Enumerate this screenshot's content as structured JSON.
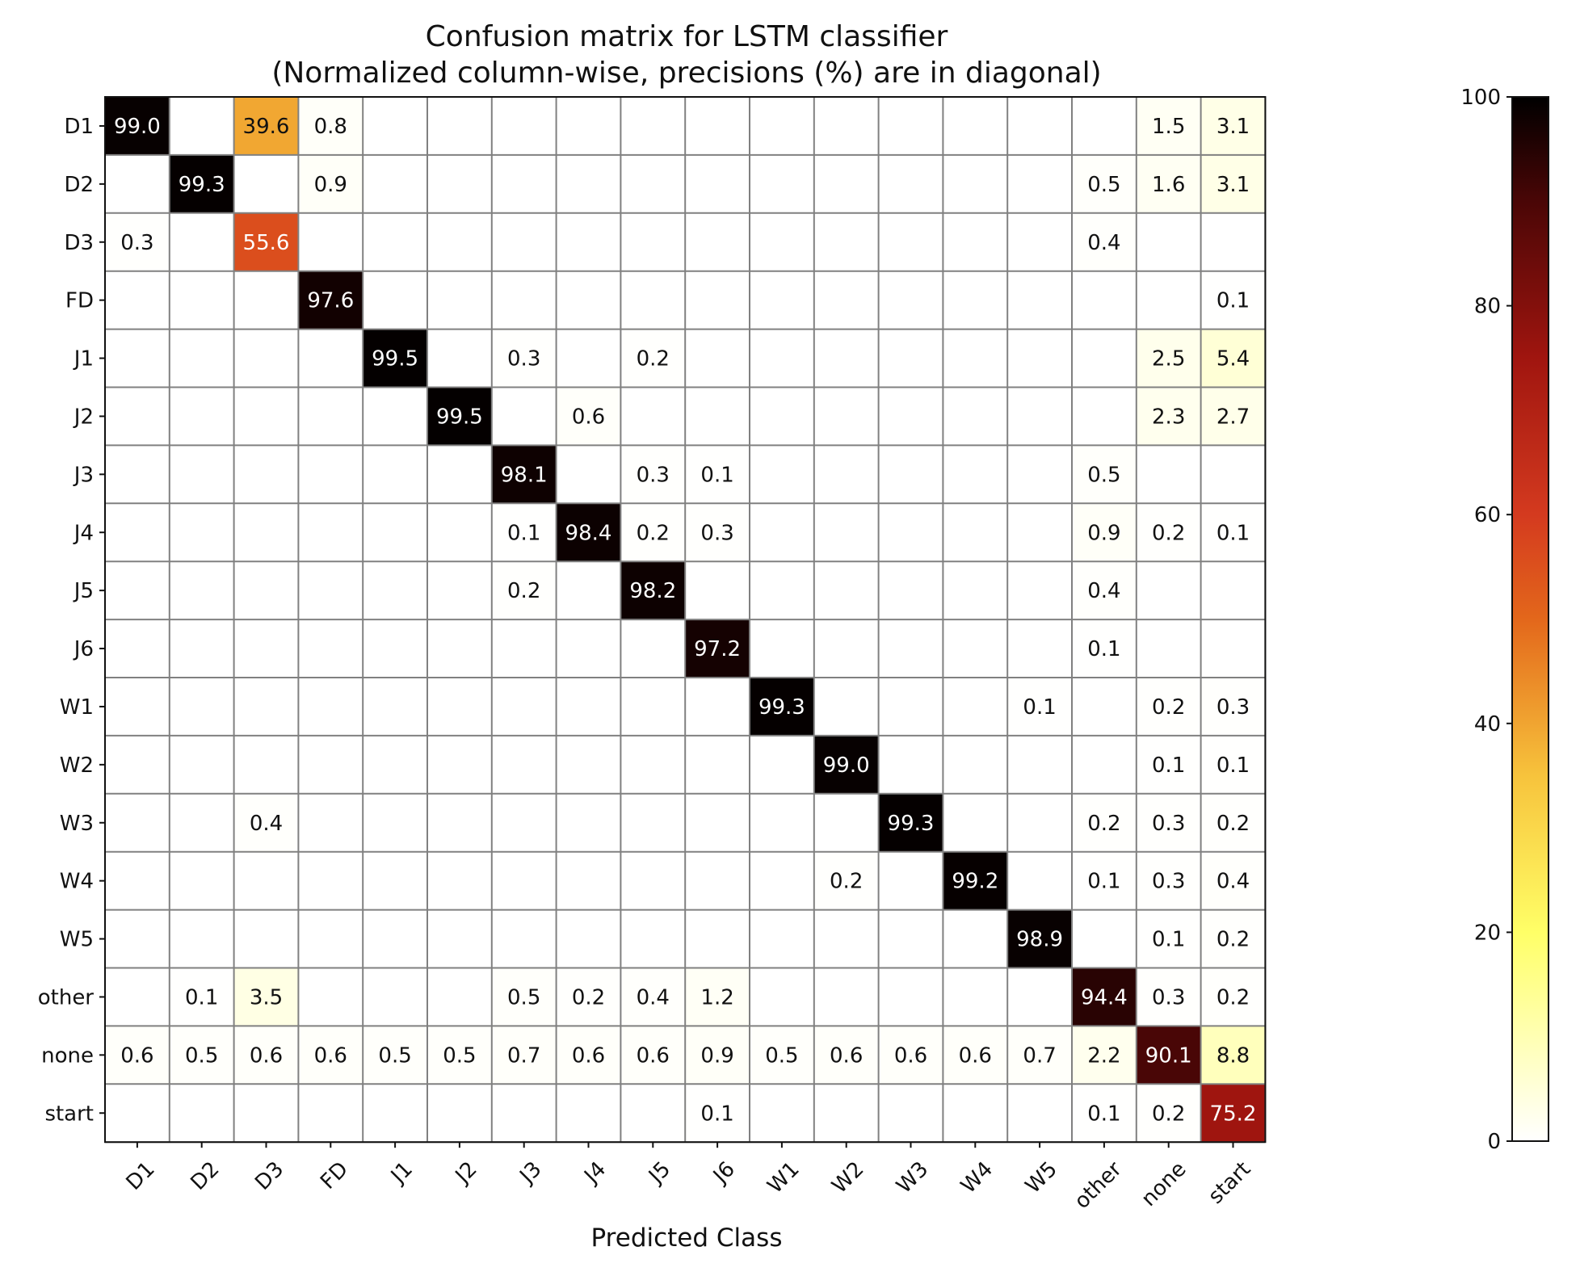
{
  "chart_data": {
    "type": "heatmap",
    "title": "Confusion matrix for LSTM classifier",
    "subtitle": "(Normalized column-wise, precisions (%) are in diagonal)",
    "xlabel": "Predicted Class",
    "ylabel": "",
    "row_labels": [
      "D1",
      "D2",
      "D3",
      "FD",
      "J1",
      "J2",
      "J3",
      "J4",
      "J5",
      "J6",
      "W1",
      "W2",
      "W3",
      "W4",
      "W5",
      "other",
      "none",
      "start"
    ],
    "col_labels": [
      "D1",
      "D2",
      "D3",
      "FD",
      "J1",
      "J2",
      "J3",
      "J4",
      "J5",
      "J6",
      "W1",
      "W2",
      "W3",
      "W4",
      "W5",
      "other",
      "none",
      "start"
    ],
    "colormap": "afmhot_r",
    "color_range": [
      0,
      100
    ],
    "colorbar_ticks": [
      "0",
      "20",
      "40",
      "60",
      "80",
      "100"
    ],
    "cells": [
      {
        "row": "D1",
        "col": "D1",
        "value": "99.0"
      },
      {
        "row": "D1",
        "col": "D3",
        "value": "39.6"
      },
      {
        "row": "D1",
        "col": "FD",
        "value": "0.8"
      },
      {
        "row": "D1",
        "col": "none",
        "value": "1.5"
      },
      {
        "row": "D1",
        "col": "start",
        "value": "3.1"
      },
      {
        "row": "D2",
        "col": "D2",
        "value": "99.3"
      },
      {
        "row": "D2",
        "col": "FD",
        "value": "0.9"
      },
      {
        "row": "D2",
        "col": "other",
        "value": "0.5"
      },
      {
        "row": "D2",
        "col": "none",
        "value": "1.6"
      },
      {
        "row": "D2",
        "col": "start",
        "value": "3.1"
      },
      {
        "row": "D3",
        "col": "D1",
        "value": "0.3"
      },
      {
        "row": "D3",
        "col": "D3",
        "value": "55.6"
      },
      {
        "row": "D3",
        "col": "other",
        "value": "0.4"
      },
      {
        "row": "FD",
        "col": "FD",
        "value": "97.6"
      },
      {
        "row": "FD",
        "col": "start",
        "value": "0.1"
      },
      {
        "row": "J1",
        "col": "J1",
        "value": "99.5"
      },
      {
        "row": "J1",
        "col": "J3",
        "value": "0.3"
      },
      {
        "row": "J1",
        "col": "J5",
        "value": "0.2"
      },
      {
        "row": "J1",
        "col": "none",
        "value": "2.5"
      },
      {
        "row": "J1",
        "col": "start",
        "value": "5.4"
      },
      {
        "row": "J2",
        "col": "J2",
        "value": "99.5"
      },
      {
        "row": "J2",
        "col": "J4",
        "value": "0.6"
      },
      {
        "row": "J2",
        "col": "none",
        "value": "2.3"
      },
      {
        "row": "J2",
        "col": "start",
        "value": "2.7"
      },
      {
        "row": "J3",
        "col": "J3",
        "value": "98.1"
      },
      {
        "row": "J3",
        "col": "J5",
        "value": "0.3"
      },
      {
        "row": "J3",
        "col": "J6",
        "value": "0.1"
      },
      {
        "row": "J3",
        "col": "other",
        "value": "0.5"
      },
      {
        "row": "J4",
        "col": "J3",
        "value": "0.1"
      },
      {
        "row": "J4",
        "col": "J4",
        "value": "98.4"
      },
      {
        "row": "J4",
        "col": "J5",
        "value": "0.2"
      },
      {
        "row": "J4",
        "col": "J6",
        "value": "0.3"
      },
      {
        "row": "J4",
        "col": "other",
        "value": "0.9"
      },
      {
        "row": "J4",
        "col": "none",
        "value": "0.2"
      },
      {
        "row": "J4",
        "col": "start",
        "value": "0.1"
      },
      {
        "row": "J5",
        "col": "J3",
        "value": "0.2"
      },
      {
        "row": "J5",
        "col": "J5",
        "value": "98.2"
      },
      {
        "row": "J5",
        "col": "other",
        "value": "0.4"
      },
      {
        "row": "J6",
        "col": "J6",
        "value": "97.2"
      },
      {
        "row": "J6",
        "col": "other",
        "value": "0.1"
      },
      {
        "row": "W1",
        "col": "W1",
        "value": "99.3"
      },
      {
        "row": "W1",
        "col": "W5",
        "value": "0.1"
      },
      {
        "row": "W1",
        "col": "none",
        "value": "0.2"
      },
      {
        "row": "W1",
        "col": "start",
        "value": "0.3"
      },
      {
        "row": "W2",
        "col": "W2",
        "value": "99.0"
      },
      {
        "row": "W2",
        "col": "none",
        "value": "0.1"
      },
      {
        "row": "W2",
        "col": "start",
        "value": "0.1"
      },
      {
        "row": "W3",
        "col": "D3",
        "value": "0.4"
      },
      {
        "row": "W3",
        "col": "W3",
        "value": "99.3"
      },
      {
        "row": "W3",
        "col": "other",
        "value": "0.2"
      },
      {
        "row": "W3",
        "col": "none",
        "value": "0.3"
      },
      {
        "row": "W3",
        "col": "start",
        "value": "0.2"
      },
      {
        "row": "W4",
        "col": "W2",
        "value": "0.2"
      },
      {
        "row": "W4",
        "col": "W4",
        "value": "99.2"
      },
      {
        "row": "W4",
        "col": "other",
        "value": "0.1"
      },
      {
        "row": "W4",
        "col": "none",
        "value": "0.3"
      },
      {
        "row": "W4",
        "col": "start",
        "value": "0.4"
      },
      {
        "row": "W5",
        "col": "W5",
        "value": "98.9"
      },
      {
        "row": "W5",
        "col": "none",
        "value": "0.1"
      },
      {
        "row": "W5",
        "col": "start",
        "value": "0.2"
      },
      {
        "row": "other",
        "col": "D2",
        "value": "0.1"
      },
      {
        "row": "other",
        "col": "D3",
        "value": "3.5"
      },
      {
        "row": "other",
        "col": "J3",
        "value": "0.5"
      },
      {
        "row": "other",
        "col": "J4",
        "value": "0.2"
      },
      {
        "row": "other",
        "col": "J5",
        "value": "0.4"
      },
      {
        "row": "other",
        "col": "J6",
        "value": "1.2"
      },
      {
        "row": "other",
        "col": "other",
        "value": "94.4"
      },
      {
        "row": "other",
        "col": "none",
        "value": "0.3"
      },
      {
        "row": "other",
        "col": "start",
        "value": "0.2"
      },
      {
        "row": "none",
        "col": "D1",
        "value": "0.6"
      },
      {
        "row": "none",
        "col": "D2",
        "value": "0.5"
      },
      {
        "row": "none",
        "col": "D3",
        "value": "0.6"
      },
      {
        "row": "none",
        "col": "FD",
        "value": "0.6"
      },
      {
        "row": "none",
        "col": "J1",
        "value": "0.5"
      },
      {
        "row": "none",
        "col": "J2",
        "value": "0.5"
      },
      {
        "row": "none",
        "col": "J3",
        "value": "0.7"
      },
      {
        "row": "none",
        "col": "J4",
        "value": "0.6"
      },
      {
        "row": "none",
        "col": "J5",
        "value": "0.6"
      },
      {
        "row": "none",
        "col": "J6",
        "value": "0.9"
      },
      {
        "row": "none",
        "col": "W1",
        "value": "0.5"
      },
      {
        "row": "none",
        "col": "W2",
        "value": "0.6"
      },
      {
        "row": "none",
        "col": "W3",
        "value": "0.6"
      },
      {
        "row": "none",
        "col": "W4",
        "value": "0.6"
      },
      {
        "row": "none",
        "col": "W5",
        "value": "0.7"
      },
      {
        "row": "none",
        "col": "other",
        "value": "2.2"
      },
      {
        "row": "none",
        "col": "none",
        "value": "90.1"
      },
      {
        "row": "none",
        "col": "start",
        "value": "8.8"
      },
      {
        "row": "start",
        "col": "J6",
        "value": "0.1"
      },
      {
        "row": "start",
        "col": "other",
        "value": "0.1"
      },
      {
        "row": "start",
        "col": "none",
        "value": "0.2"
      },
      {
        "row": "start",
        "col": "start",
        "value": "75.2"
      }
    ]
  }
}
